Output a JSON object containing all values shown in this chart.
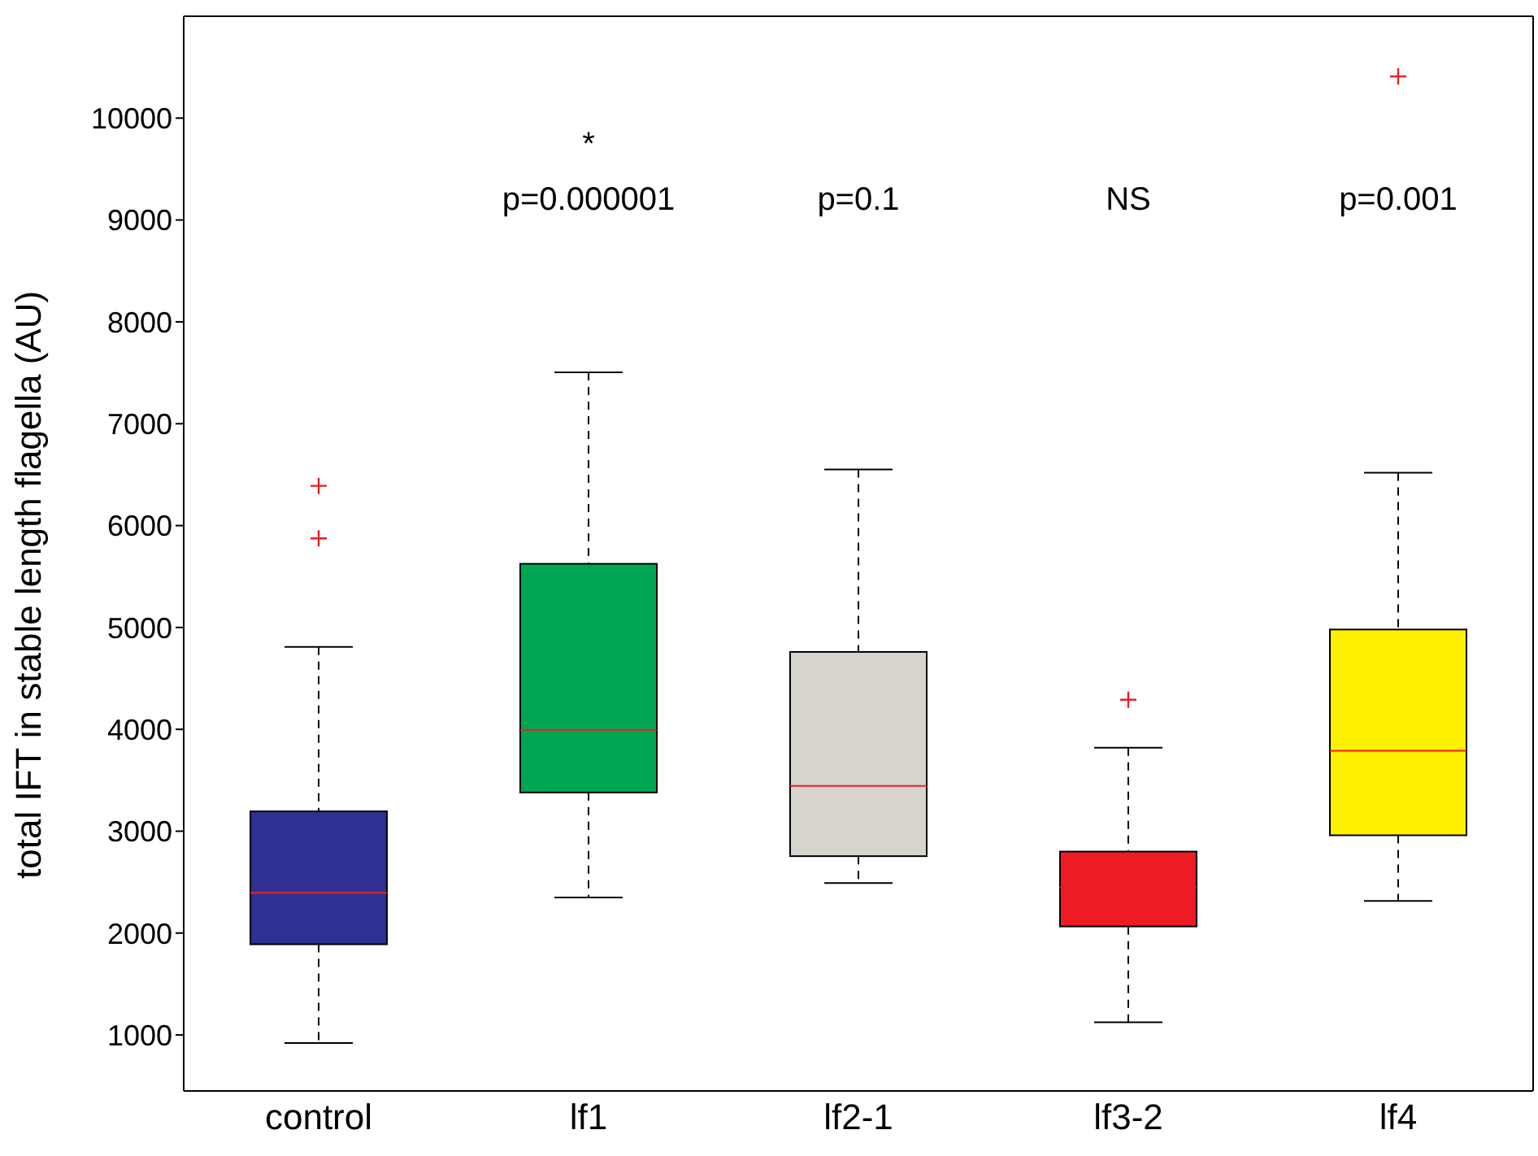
{
  "chart_data": {
    "type": "box",
    "ylabel": "total IFT in stable length flagella (AU)",
    "categories": [
      "control",
      "lf1",
      "lf2-1",
      "lf3-2",
      "lf4"
    ],
    "colors": [
      "#2e3192",
      "#00a651",
      "#d7d4ce",
      "#ed1c24",
      "#fff200"
    ],
    "boxes": [
      {
        "low": 920,
        "q1": 1890,
        "median": 2395,
        "q3": 3195,
        "high": 4810,
        "outliers": [
          5875,
          6390
        ]
      },
      {
        "low": 2350,
        "q1": 3380,
        "median": 3995,
        "q3": 5625,
        "high": 7505
      },
      {
        "low": 2490,
        "q1": 2755,
        "median": 3445,
        "q3": 4760,
        "high": 6550
      },
      {
        "low": 1125,
        "q1": 2065,
        "median": 2450,
        "q3": 2800,
        "high": 3820,
        "outliers": [
          4290
        ]
      },
      {
        "low": 2315,
        "q1": 2960,
        "median": 3790,
        "q3": 4980,
        "high": 6520,
        "outliers": [
          10410
        ]
      }
    ],
    "ylim": [
      450,
      11000
    ],
    "yticks": [
      1000,
      2000,
      3000,
      4000,
      5000,
      6000,
      7000,
      8000,
      9000,
      10000
    ],
    "annotations": [
      "*",
      "p=0.000001",
      "p=0.1",
      "NS",
      "p=0.001"
    ]
  }
}
